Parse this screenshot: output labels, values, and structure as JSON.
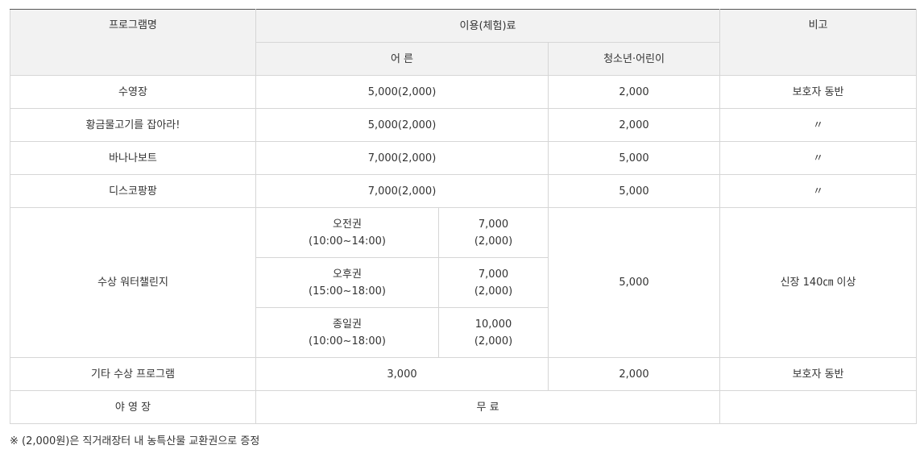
{
  "header": {
    "program": "프로그램명",
    "fee": "이용(체험)료",
    "remarks": "비고",
    "adult": "어 른",
    "youth": "청소년·어린이"
  },
  "rows": [
    {
      "name": "수영장",
      "adult": "5,000(2,000)",
      "youth": "2,000",
      "remarks": "보호자 동반"
    },
    {
      "name": "황금물고기를 잡아라!",
      "adult": "5,000(2,000)",
      "youth": "2,000",
      "remarks": "〃"
    },
    {
      "name": "바나나보트",
      "adult": "7,000(2,000)",
      "youth": "5,000",
      "remarks": "〃"
    },
    {
      "name": "디스코팡팡",
      "adult": "7,000(2,000)",
      "youth": "5,000",
      "remarks": "〃"
    }
  ],
  "water_challenge": {
    "name": "수상 워터챌린지",
    "youth": "5,000",
    "remarks": "신장 140㎝ 이상",
    "tickets": [
      {
        "type": "오전권",
        "time": "(10:00~14:00)",
        "price": "7,000",
        "sub": "(2,000)"
      },
      {
        "type": "오후권",
        "time": "(15:00~18:00)",
        "price": "7,000",
        "sub": "(2,000)"
      },
      {
        "type": "종일권",
        "time": "(10:00~18:00)",
        "price": "10,000",
        "sub": "(2,000)"
      }
    ]
  },
  "other": {
    "name": "기타 수상 프로그램",
    "adult": "3,000",
    "youth": "2,000",
    "remarks": "보호자 동반"
  },
  "camping": {
    "name": "야 영 장",
    "fee": "무 료",
    "remarks": ""
  },
  "note": "※ (2,000원)은 직거래장터 내 농특산물 교환권으로 증정"
}
